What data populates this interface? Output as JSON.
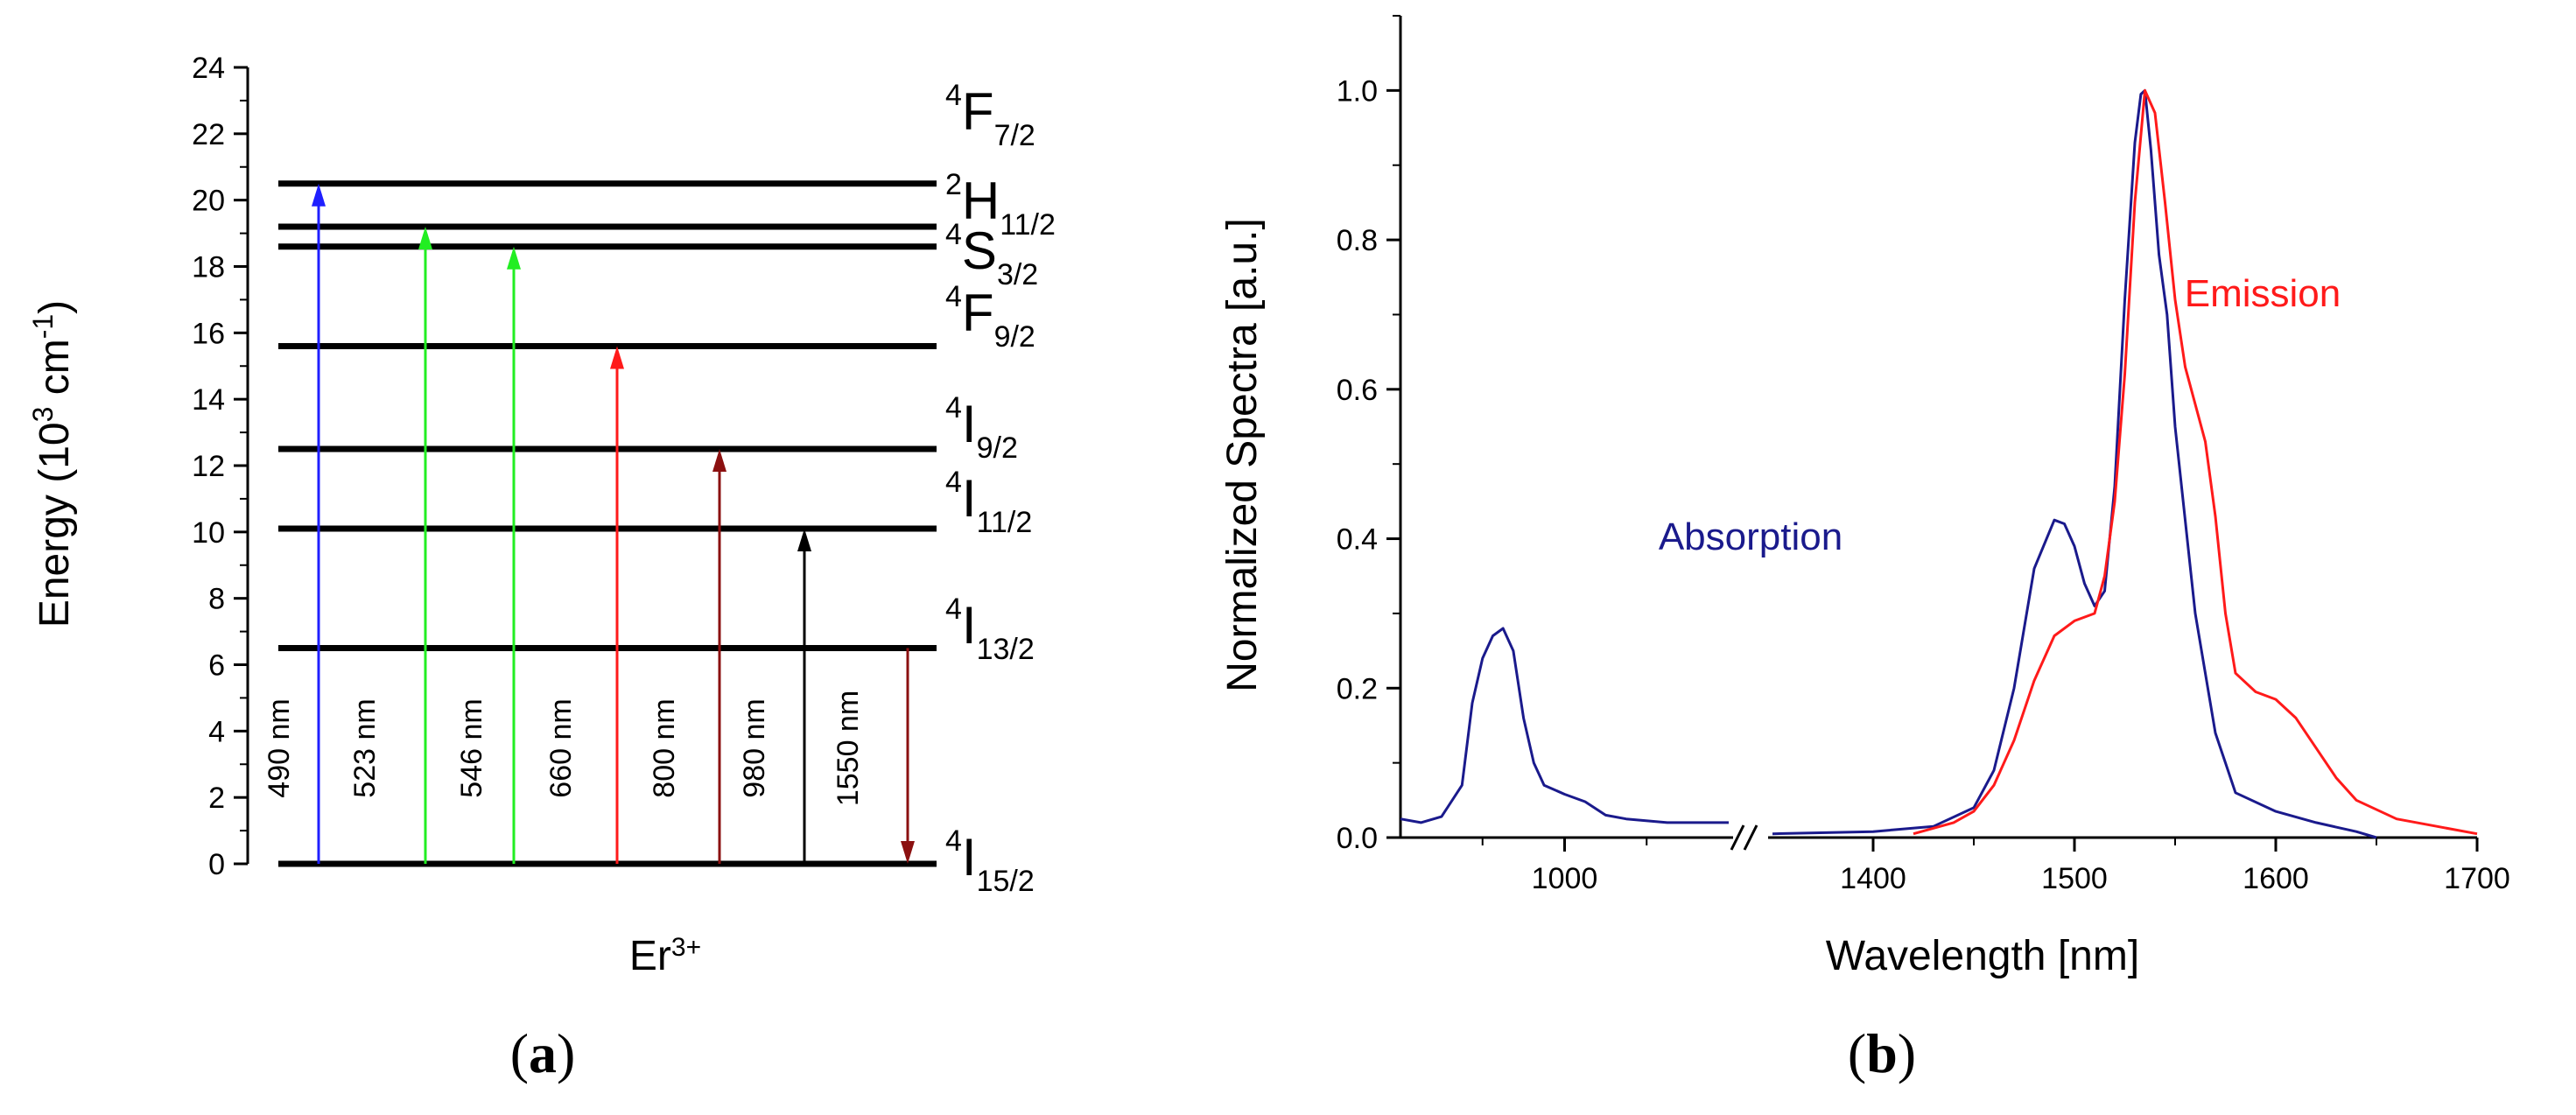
{
  "colors": {
    "blue": "#1f1fff",
    "green": "#22ee22",
    "red": "#ff1a1a",
    "darkred": "#8b1010",
    "black": "#000000",
    "absorption": "#1a1a8c",
    "emission": "#ff1a1a"
  },
  "chart_data": [
    {
      "type": "diagram",
      "title": "",
      "panel_label": {
        "open": "(",
        "letter": "a",
        "close": ")"
      },
      "ylabel": {
        "prefix": "Energy (10",
        "exp": "3",
        "mid": " cm",
        "exp2": "-1",
        "suffix": ")"
      },
      "xlabel": {
        "base": "Er",
        "sup": "3+"
      },
      "ylim": [
        0,
        24
      ],
      "yticks": [
        "0",
        "2",
        "4",
        "6",
        "8",
        "10",
        "12",
        "14",
        "16",
        "18",
        "20",
        "22",
        "24"
      ],
      "levels": [
        {
          "name": "4I15/2",
          "energy": 0.0,
          "sup": "4",
          "base": "I",
          "sub": "15/2"
        },
        {
          "name": "4I13/2",
          "energy": 6.5,
          "sup": "4",
          "base": "I",
          "sub": "13/2"
        },
        {
          "name": "4I11/2",
          "energy": 10.1,
          "sup": "4",
          "base": "I",
          "sub": "11/2"
        },
        {
          "name": "4I9/2",
          "energy": 12.5,
          "sup": "4",
          "base": "I",
          "sub": "9/2"
        },
        {
          "name": "4F9/2",
          "energy": 15.6,
          "sup": "4",
          "base": "F",
          "sub": "9/2"
        },
        {
          "name": "4S3/2",
          "energy": 18.6,
          "sup": "4",
          "base": "S",
          "sub": "3/2"
        },
        {
          "name": "2H11/2",
          "energy": 19.2,
          "sup": "2",
          "base": "H",
          "sub": "11/2"
        },
        {
          "name": "4F7/2",
          "energy": 20.5,
          "sup": "4",
          "base": "F",
          "sub": "7/2"
        }
      ],
      "transitions": [
        {
          "label": "490 nm",
          "from": 0.0,
          "to": 20.5,
          "color": "blue",
          "direction": "up"
        },
        {
          "label": "523 nm",
          "from": 0.0,
          "to": 19.2,
          "color": "green",
          "direction": "up"
        },
        {
          "label": "546 nm",
          "from": 0.0,
          "to": 18.6,
          "color": "green",
          "direction": "up"
        },
        {
          "label": "660 nm",
          "from": 0.0,
          "to": 15.6,
          "color": "red",
          "direction": "up"
        },
        {
          "label": "800 nm",
          "from": 0.0,
          "to": 12.5,
          "color": "darkred",
          "direction": "up"
        },
        {
          "label": "980 nm",
          "from": 0.0,
          "to": 10.1,
          "color": "black",
          "direction": "up"
        },
        {
          "label": "1550 nm",
          "from": 6.5,
          "to": 0.0,
          "color": "darkred",
          "direction": "down"
        }
      ]
    },
    {
      "type": "line",
      "title": "",
      "panel_label": {
        "open": "(",
        "letter": "b",
        "close": ")"
      },
      "xlabel": "Wavelength [nm]",
      "ylabel": "Normalized Spectra [a.u.]",
      "ylim": [
        0,
        1.1
      ],
      "yticks": [
        "0.0",
        "0.2",
        "0.4",
        "0.6",
        "0.8",
        "1.0"
      ],
      "x_break": {
        "left_range": [
          920,
          1080
        ],
        "right_range": [
          1350,
          1700
        ]
      },
      "xticks": [
        "1000",
        "1400",
        "1500",
        "1600",
        "1700"
      ],
      "annotations": [
        {
          "text": "Absorption",
          "color": "absorption"
        },
        {
          "text": "Emission",
          "color": "emission"
        }
      ],
      "series": [
        {
          "name": "Absorption",
          "color": "absorption",
          "x": [
            920,
            930,
            940,
            950,
            955,
            960,
            965,
            970,
            975,
            980,
            985,
            990,
            1000,
            1010,
            1020,
            1030,
            1050,
            1080,
            1350,
            1400,
            1430,
            1450,
            1460,
            1470,
            1480,
            1490,
            1495,
            1500,
            1505,
            1510,
            1515,
            1520,
            1525,
            1530,
            1533,
            1535,
            1538,
            1542,
            1546,
            1550,
            1560,
            1570,
            1580,
            1600,
            1620,
            1640,
            1650
          ],
          "y": [
            0.025,
            0.02,
            0.028,
            0.07,
            0.18,
            0.24,
            0.27,
            0.28,
            0.25,
            0.16,
            0.1,
            0.07,
            0.058,
            0.048,
            0.03,
            0.025,
            0.02,
            0.02,
            0.005,
            0.008,
            0.015,
            0.04,
            0.09,
            0.2,
            0.36,
            0.425,
            0.42,
            0.39,
            0.34,
            0.31,
            0.33,
            0.47,
            0.72,
            0.93,
            0.995,
            1.0,
            0.92,
            0.78,
            0.7,
            0.55,
            0.3,
            0.14,
            0.06,
            0.035,
            0.02,
            0.008,
            0.0
          ]
        },
        {
          "name": "Emission",
          "color": "emission",
          "x": [
            1420,
            1440,
            1450,
            1460,
            1470,
            1480,
            1490,
            1500,
            1510,
            1515,
            1520,
            1525,
            1530,
            1535,
            1540,
            1545,
            1550,
            1555,
            1560,
            1565,
            1570,
            1575,
            1580,
            1590,
            1600,
            1610,
            1620,
            1630,
            1640,
            1660,
            1680,
            1700
          ],
          "y": [
            0.005,
            0.02,
            0.035,
            0.07,
            0.13,
            0.21,
            0.27,
            0.29,
            0.3,
            0.35,
            0.45,
            0.62,
            0.85,
            1.0,
            0.97,
            0.85,
            0.72,
            0.63,
            0.58,
            0.53,
            0.43,
            0.3,
            0.22,
            0.195,
            0.185,
            0.16,
            0.12,
            0.08,
            0.05,
            0.025,
            0.015,
            0.005
          ]
        }
      ]
    }
  ]
}
